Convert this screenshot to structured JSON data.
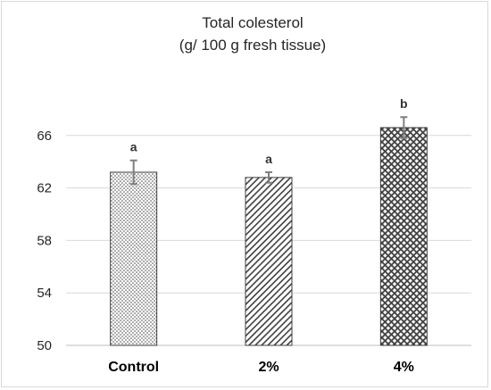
{
  "chart_data": {
    "type": "bar",
    "title_line1": "Total colesterol",
    "title_line2": "(g/ 100 g fresh tissue)",
    "xlabel": "",
    "ylabel": "",
    "ylim": [
      50,
      70
    ],
    "yticks": [
      "50",
      "54",
      "58",
      "62",
      "66"
    ],
    "grid": true,
    "categories": [
      "Control",
      "2%",
      "4%"
    ],
    "values": [
      63.2,
      62.8,
      66.6
    ],
    "errors": [
      0.9,
      0.4,
      0.8
    ],
    "significance": [
      "a",
      "a",
      "b"
    ],
    "patterns": [
      "dots",
      "diagonal-hatch",
      "diamond-check"
    ],
    "bar_fill_color": "#ffffff",
    "pattern_color": "#404040",
    "error_bar_color": "#7f7f7f",
    "grid_color": "#d9d9d9"
  }
}
